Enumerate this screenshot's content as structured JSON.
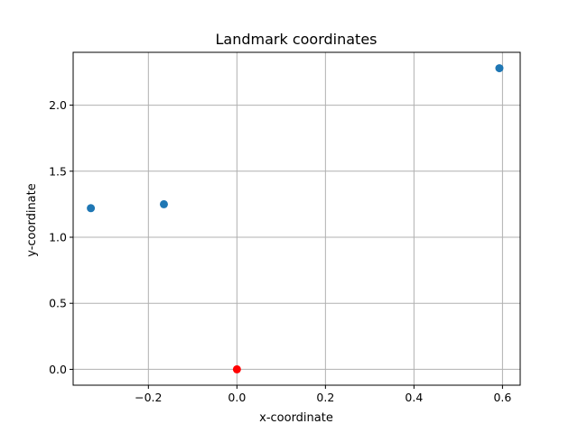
{
  "chart_data": {
    "type": "scatter",
    "title": "Landmark coordinates",
    "xlabel": "x-coordinate",
    "ylabel": "y-coordinate",
    "xlim": [
      -0.37,
      0.64
    ],
    "ylim": [
      -0.12,
      2.4
    ],
    "grid": true,
    "x_ticks": [
      {
        "value": -0.2,
        "label": "−0.2"
      },
      {
        "value": 0.0,
        "label": "0.0"
      },
      {
        "value": 0.2,
        "label": "0.2"
      },
      {
        "value": 0.4,
        "label": "0.4"
      },
      {
        "value": 0.6,
        "label": "0.6"
      }
    ],
    "y_ticks": [
      {
        "value": 0.0,
        "label": "0.0"
      },
      {
        "value": 0.5,
        "label": "0.5"
      },
      {
        "value": 1.0,
        "label": "1.0"
      },
      {
        "value": 1.5,
        "label": "1.5"
      },
      {
        "value": 2.0,
        "label": "2.0"
      }
    ],
    "series": [
      {
        "color": "#1f77b4",
        "points": [
          {
            "x": -0.33,
            "y": 1.22
          },
          {
            "x": -0.165,
            "y": 1.25
          },
          {
            "x": 0.593,
            "y": 2.28
          }
        ]
      },
      {
        "color": "#ff0000",
        "points": [
          {
            "x": 0.0,
            "y": 0.0
          }
        ]
      }
    ]
  }
}
